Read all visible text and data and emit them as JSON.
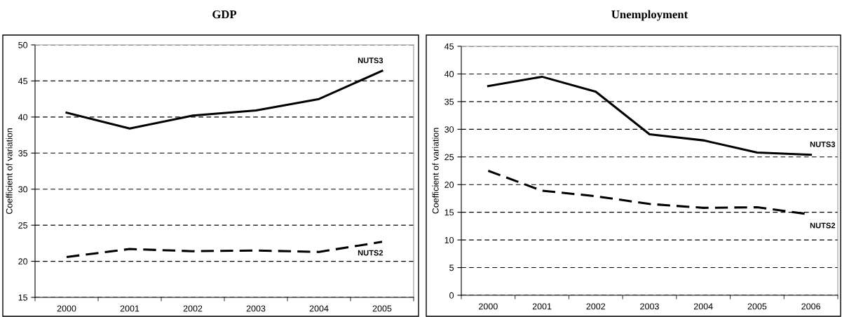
{
  "chart_data": [
    {
      "type": "line",
      "title": "GDP",
      "ylabel": "Coefficient of variation",
      "categories": [
        "2000",
        "2001",
        "2002",
        "2003",
        "2004",
        "2005"
      ],
      "ylim": [
        15,
        50
      ],
      "yticks": [
        15,
        20,
        25,
        30,
        35,
        40,
        45,
        50
      ],
      "grid": "y",
      "legend": false,
      "series": [
        {
          "name": "NUTS3",
          "color": "#000000",
          "line_style": "solid",
          "values": [
            40.6,
            38.4,
            40.2,
            40.9,
            42.5,
            46.4
          ]
        },
        {
          "name": "NUTS2",
          "color": "#000000",
          "line_style": "dashed",
          "values": [
            20.6,
            21.7,
            21.4,
            21.5,
            21.3,
            22.7
          ]
        }
      ]
    },
    {
      "type": "line",
      "title": "Unemployment",
      "ylabel": "Coefficient of variation",
      "categories": [
        "2000",
        "2001",
        "2002",
        "2003",
        "2004",
        "2005",
        "2006"
      ],
      "ylim": [
        0,
        45
      ],
      "yticks": [
        0,
        5,
        10,
        15,
        20,
        25,
        30,
        35,
        40,
        45
      ],
      "grid": "y",
      "legend": false,
      "series": [
        {
          "name": "NUTS3",
          "color": "#000000",
          "line_style": "solid",
          "values": [
            37.8,
            39.5,
            36.8,
            29.1,
            28.0,
            25.8,
            25.4
          ]
        },
        {
          "name": "NUTS2",
          "color": "#000000",
          "line_style": "dashed",
          "values": [
            22.5,
            18.9,
            17.9,
            16.5,
            15.8,
            15.9,
            14.6
          ]
        }
      ]
    }
  ]
}
